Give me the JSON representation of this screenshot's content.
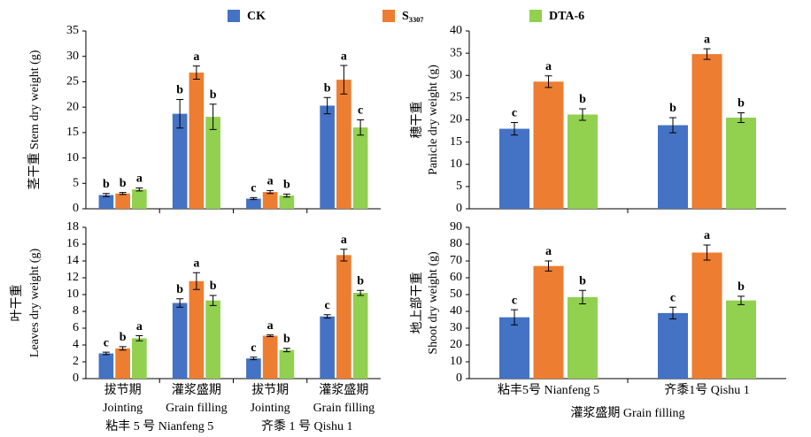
{
  "chart_data": [
    {
      "type": "bar",
      "ylabel": [
        "茎干重 Stem dry weight (g)"
      ],
      "ylim": [
        0,
        35
      ],
      "yticks": [
        0,
        5,
        10,
        15,
        20,
        25,
        30,
        35
      ],
      "series": [
        {
          "name": "CK",
          "color": "#4472c4",
          "values": [
            2.7,
            18.7,
            2.0,
            20.3
          ],
          "errors": [
            0.3,
            2.8,
            0.2,
            1.6
          ],
          "letters": [
            "b",
            "b",
            "c",
            "b"
          ]
        },
        {
          "name": "S₃₃₀₇",
          "color": "#ed7d31",
          "values": [
            3.0,
            26.8,
            3.3,
            25.4
          ],
          "errors": [
            0.2,
            1.3,
            0.3,
            2.8
          ],
          "letters": [
            "b",
            "a",
            "a",
            "a"
          ]
        },
        {
          "name": "DTA-6",
          "color": "#92d050",
          "values": [
            3.8,
            18.1,
            2.6,
            16.0
          ],
          "errors": [
            0.3,
            2.5,
            0.3,
            1.5
          ],
          "letters": [
            "a",
            "b",
            "b",
            "c"
          ]
        }
      ]
    },
    {
      "type": "bar",
      "ylabel": [
        "叶干重",
        "Leaves dry weight (g)"
      ],
      "ylim": [
        0,
        18
      ],
      "yticks": [
        0,
        2,
        4,
        6,
        8,
        10,
        12,
        14,
        16,
        18
      ],
      "categories": [
        "拔节期",
        "灌浆盛期",
        "拔节期",
        "灌浆盛期"
      ],
      "categories_en": [
        "Jointing",
        "Grain filling",
        "Jointing",
        "Grain filling"
      ],
      "groups": [
        "粘丰 5 号 Nianfeng 5",
        "齐黍 1 号 Qishu 1"
      ],
      "series": [
        {
          "name": "CK",
          "color": "#4472c4",
          "values": [
            3.0,
            9.0,
            2.4,
            7.4
          ],
          "errors": [
            0.15,
            0.5,
            0.15,
            0.2
          ],
          "letters": [
            "c",
            "b",
            "c",
            "c"
          ]
        },
        {
          "name": "S₃₃₀₇",
          "color": "#ed7d31",
          "values": [
            3.6,
            11.6,
            5.1,
            14.7
          ],
          "errors": [
            0.2,
            1.0,
            0.1,
            0.7
          ],
          "letters": [
            "b",
            "a",
            "a",
            "a"
          ]
        },
        {
          "name": "DTA-6",
          "color": "#92d050",
          "values": [
            4.8,
            9.3,
            3.4,
            10.2
          ],
          "errors": [
            0.3,
            0.6,
            0.2,
            0.3
          ],
          "letters": [
            "a",
            "b",
            "b",
            "b"
          ]
        }
      ]
    },
    {
      "type": "bar",
      "ylabel": [
        "穗干重",
        "Panicle dry weight (g)"
      ],
      "ylim": [
        0,
        40
      ],
      "yticks": [
        0,
        5,
        10,
        15,
        20,
        25,
        30,
        35,
        40
      ],
      "series": [
        {
          "name": "CK",
          "color": "#4472c4",
          "values": [
            18.0,
            18.8
          ],
          "errors": [
            1.4,
            1.7
          ],
          "letters": [
            "c",
            "b"
          ]
        },
        {
          "name": "S₃₃₀₇",
          "color": "#ed7d31",
          "values": [
            28.6,
            34.8
          ],
          "errors": [
            1.3,
            1.2
          ],
          "letters": [
            "a",
            "a"
          ]
        },
        {
          "name": "DTA-6",
          "color": "#92d050",
          "values": [
            21.2,
            20.5
          ],
          "errors": [
            1.3,
            1.1
          ],
          "letters": [
            "b",
            "b"
          ]
        }
      ]
    },
    {
      "type": "bar",
      "ylabel": [
        "地上部干重",
        "Shoot dry weight (g)"
      ],
      "xlabel": "灌浆盛期 Grain filling",
      "ylim": [
        0,
        90
      ],
      "yticks": [
        0,
        10,
        20,
        30,
        40,
        50,
        60,
        70,
        80,
        90
      ],
      "categories": [
        "粘丰5号 Nianfeng 5",
        "齐黍1号 Qishu 1"
      ],
      "series": [
        {
          "name": "CK",
          "color": "#4472c4",
          "values": [
            36.5,
            39.0
          ],
          "errors": [
            4.5,
            3.5
          ],
          "letters": [
            "c",
            "c"
          ]
        },
        {
          "name": "S₃₃₀₇",
          "color": "#ed7d31",
          "values": [
            67.0,
            75.0
          ],
          "errors": [
            3.0,
            4.5
          ],
          "letters": [
            "a",
            "a"
          ]
        },
        {
          "name": "DTA-6",
          "color": "#92d050",
          "values": [
            48.5,
            46.5
          ],
          "errors": [
            4.0,
            2.5
          ],
          "letters": [
            "b",
            "b"
          ]
        }
      ]
    }
  ]
}
